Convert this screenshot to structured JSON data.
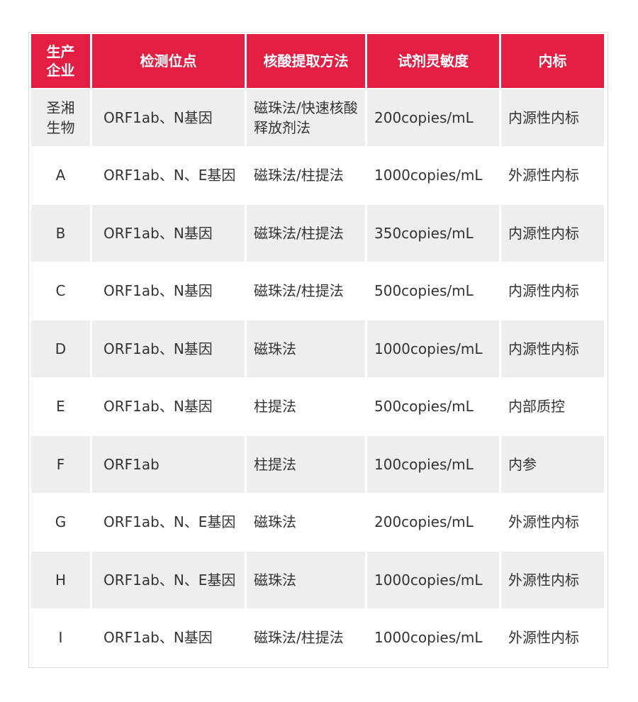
{
  "table": {
    "headers": [
      "生产企业",
      "检测位点",
      "核酸提取方法",
      "试剂灵敏度",
      "内标"
    ],
    "header_color": "#e31e42",
    "rows": [
      [
        "圣湘生物",
        "ORF1ab、N基因",
        "磁珠法/快速核酸释放剂法",
        "200copies/mL",
        "内源性内标"
      ],
      [
        "A",
        "ORF1ab、N、E基因",
        "磁珠法/柱提法",
        "1000copies/mL",
        "外源性内标"
      ],
      [
        "B",
        "ORF1ab、N基因",
        "磁珠法/柱提法",
        "350copies/mL",
        "内源性内标"
      ],
      [
        "C",
        "ORF1ab、N基因",
        "磁珠法/柱提法",
        "500copies/mL",
        "内源性内标"
      ],
      [
        "D",
        "ORF1ab、N基因",
        "磁珠法",
        "1000copies/mL",
        "内源性内标"
      ],
      [
        "E",
        "ORF1ab、N基因",
        "柱提法",
        "500copies/mL",
        "内部质控"
      ],
      [
        "F",
        "ORF1ab",
        "柱提法",
        "100copies/mL",
        "内参"
      ],
      [
        "G",
        "ORF1ab、N、E基因",
        "磁珠法",
        "200copies/mL",
        "外源性内标"
      ],
      [
        "H",
        "ORF1ab、N、E基因",
        "磁珠法",
        "1000copies/mL",
        "外源性内标"
      ],
      [
        "I",
        "ORF1ab、N基因",
        "磁珠法/柱提法",
        "1000copies/mL",
        "外源性内标"
      ]
    ]
  }
}
